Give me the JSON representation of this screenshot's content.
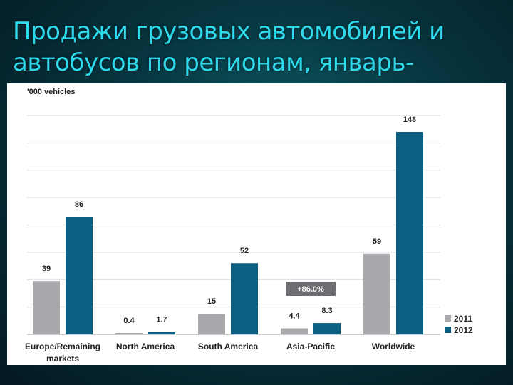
{
  "slide": {
    "title": "Продажи грузовых автомобилей и автобусов по регионам, январь-"
  },
  "chart_data": {
    "type": "bar",
    "unit_label": "'000 vehicles",
    "categories": [
      "Europe/Remaining markets",
      "North America",
      "South America",
      "Asia-Pacific",
      "Worldwide"
    ],
    "category_lines": [
      [
        "Europe/Remaining",
        "markets"
      ],
      [
        "North America"
      ],
      [
        "South America"
      ],
      [
        "Asia-Pacific"
      ],
      [
        "Worldwide"
      ]
    ],
    "series": [
      {
        "name": "2011",
        "values": [
          39,
          0.4,
          15,
          4.4,
          59
        ],
        "labels": [
          "39",
          "0.4",
          "15",
          "4.4",
          "59"
        ],
        "color": "#a7a9ac"
      },
      {
        "name": "2012",
        "values": [
          86,
          1.7,
          52,
          8.3,
          148
        ],
        "labels": [
          "86",
          "1.7",
          "52",
          "8.3",
          "148"
        ],
        "color": "#0d5f82"
      }
    ],
    "ylim": [
      0,
      160
    ],
    "grid": true,
    "legend_position": "bottom-right",
    "annotation": {
      "text": "+86.0%",
      "category": "Asia-Pacific"
    }
  }
}
